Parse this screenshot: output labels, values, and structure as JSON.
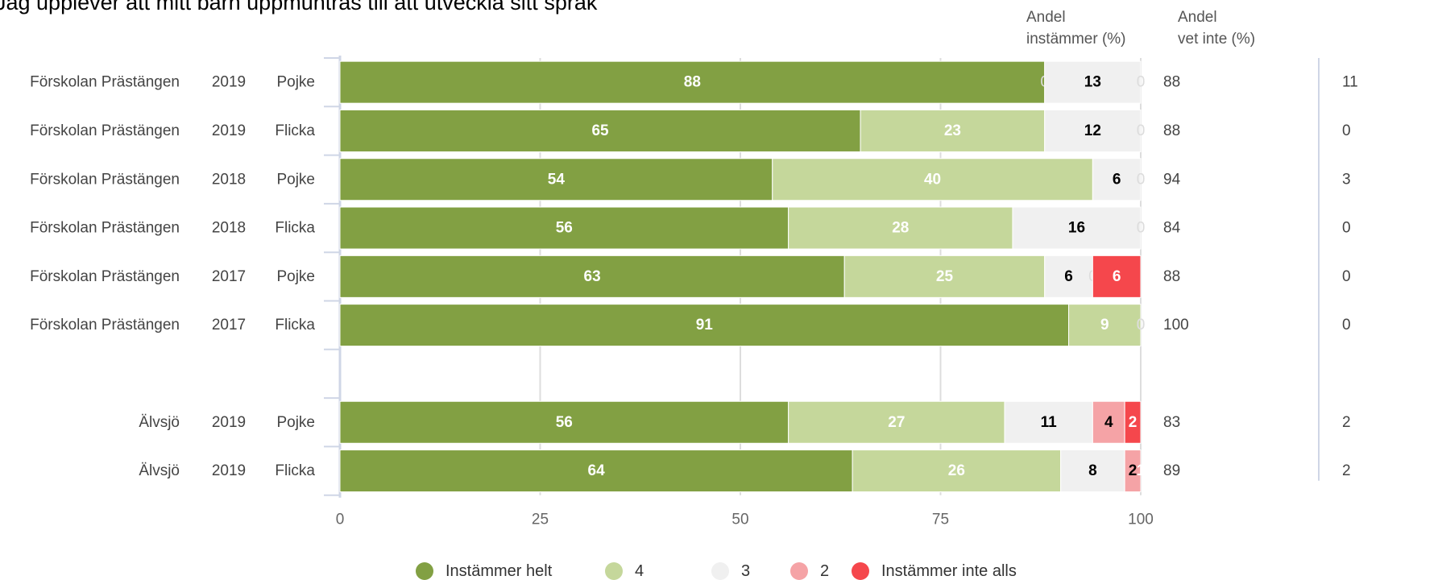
{
  "chart_data": {
    "type": "bar",
    "orientation": "horizontal",
    "stacked": true,
    "title": "Jag upplever att mitt barn uppmuntras till att utveckla sitt språk",
    "xlim": [
      0,
      100
    ],
    "xticks": [
      0,
      25,
      50,
      75,
      100
    ],
    "grid": true,
    "legend_position": "bottom",
    "rows": [
      {
        "school": "Förskolan Prästängen",
        "year": "2019",
        "gender": "Pojke"
      },
      {
        "school": "Förskolan Prästängen",
        "year": "2019",
        "gender": "Flicka"
      },
      {
        "school": "Förskolan Prästängen",
        "year": "2018",
        "gender": "Pojke"
      },
      {
        "school": "Förskolan Prästängen",
        "year": "2018",
        "gender": "Flicka"
      },
      {
        "school": "Förskolan Prästängen",
        "year": "2017",
        "gender": "Pojke"
      },
      {
        "school": "Förskolan Prästängen",
        "year": "2017",
        "gender": "Flicka"
      },
      null,
      {
        "school": "Älvsjö",
        "year": "2019",
        "gender": "Pojke"
      },
      {
        "school": "Älvsjö",
        "year": "2019",
        "gender": "Flicka"
      }
    ],
    "series": [
      {
        "name": "Instämmer helt",
        "color": "#82a043",
        "label_color": "#ffffff",
        "values": [
          88,
          65,
          54,
          56,
          63,
          91,
          null,
          56,
          64
        ]
      },
      {
        "name": "4",
        "color": "#c5d79b",
        "label_color": "#ffffff",
        "values": [
          0,
          23,
          40,
          28,
          25,
          9,
          null,
          27,
          26
        ]
      },
      {
        "name": "3",
        "color": "#f0f0f0",
        "label_color": "#000000",
        "values": [
          13,
          12,
          6,
          16,
          6,
          0,
          null,
          11,
          8
        ]
      },
      {
        "name": "2",
        "color": "#f5a3a6",
        "label_color": "#000000",
        "values": [
          0,
          0,
          0,
          0,
          0,
          0,
          null,
          4,
          2
        ]
      },
      {
        "name": "Instämmer inte alls",
        "color": "#f5474c",
        "label_color": "#ffffff",
        "values": [
          0,
          0,
          0,
          0,
          6,
          0,
          null,
          2,
          1
        ]
      }
    ],
    "columns": [
      {
        "header": [
          "Andel",
          "instämmer (%)"
        ],
        "values": [
          88,
          88,
          94,
          84,
          88,
          100,
          null,
          83,
          89
        ]
      },
      {
        "header": [
          "Andel",
          "vet inte (%)"
        ],
        "values": [
          11,
          0,
          3,
          0,
          0,
          0,
          null,
          2,
          2
        ]
      }
    ]
  }
}
